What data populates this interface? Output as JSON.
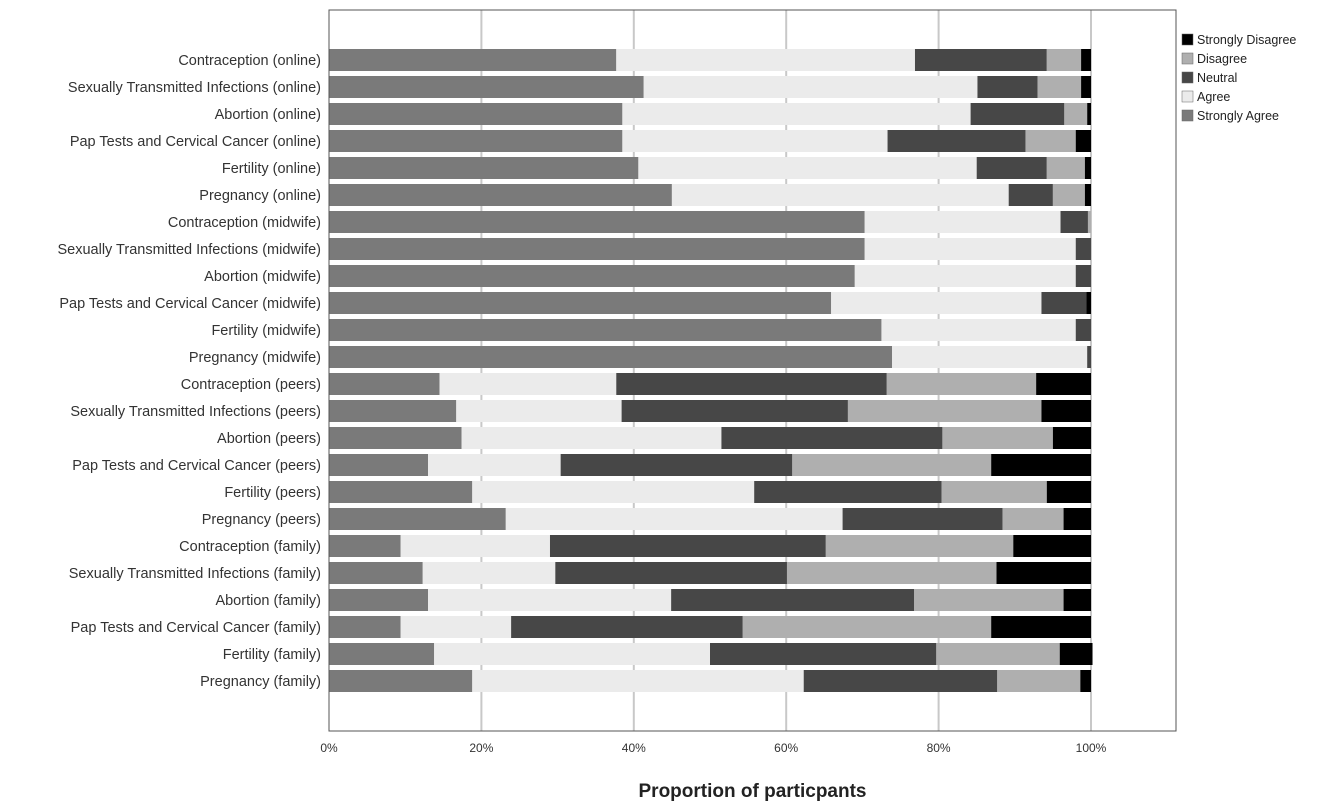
{
  "chart_data": {
    "type": "bar",
    "orientation": "horizontal",
    "stacked": true,
    "normalized": true,
    "xlabel": "Proportion of particpants",
    "xlim": [
      0,
      110
    ],
    "xticks": [
      "0%",
      "20%",
      "40%",
      "60%",
      "80%",
      "100%"
    ],
    "grid": "vertical",
    "legend_position": "top-right",
    "categories": [
      "Contraception (online)",
      "Sexually Transmitted Infections (online)",
      "Abortion  (online)",
      "Pap Tests and Cervical Cancer (online)",
      "Fertility (online)",
      "Pregnancy (online)",
      "Contraception (midwife)",
      "Sexually Transmitted Infections (midwife)",
      "Abortion (midwife)",
      "Pap Tests and Cervical Cancer (midwife)",
      "Fertility (midwife)",
      "Pregnancy (midwife)",
      "Contraception (peers)",
      "Sexually Transmitted Infections (peers)",
      "Abortion (peers)",
      "Pap Tests and Cervical Cancer (peers)",
      "Fertility (peers)",
      "Pregnancy (peers)",
      "Contraception (family)",
      "Sexually Transmitted Infections (family)",
      "Abortion (family)",
      "Pap Tests and Cervical Cancer (family)",
      "Fertility (family)",
      "Pregnancy (family)"
    ],
    "series": [
      {
        "name": "Strongly Agree",
        "color": "#7a7a7a",
        "values": [
          37.7,
          41.3,
          38.5,
          38.5,
          40.6,
          45.0,
          70.3,
          70.3,
          69.0,
          65.9,
          72.5,
          73.9,
          14.5,
          16.7,
          17.4,
          13.0,
          18.8,
          23.2,
          9.4,
          12.3,
          13.0,
          9.4,
          13.8,
          18.8
        ]
      },
      {
        "name": "Agree",
        "color": "#ebebeb",
        "values": [
          39.2,
          43.8,
          45.7,
          34.8,
          44.4,
          44.2,
          25.7,
          27.7,
          29.0,
          27.6,
          25.5,
          25.6,
          23.2,
          21.7,
          34.1,
          17.4,
          37.0,
          44.2,
          19.6,
          17.4,
          31.9,
          14.5,
          36.2,
          43.5
        ]
      },
      {
        "name": "Neutral",
        "color": "#474747",
        "values": [
          17.3,
          7.9,
          12.3,
          18.1,
          9.2,
          5.8,
          3.6,
          2.0,
          2.0,
          5.9,
          2.0,
          0.5,
          35.5,
          29.7,
          29.0,
          30.4,
          24.6,
          21.0,
          36.2,
          30.4,
          31.9,
          30.4,
          29.7,
          25.4
        ]
      },
      {
        "name": "Disagree",
        "color": "#afafaf",
        "values": [
          4.5,
          5.7,
          3.0,
          6.6,
          5.0,
          4.2,
          0.4,
          0.0,
          0.0,
          0.0,
          0.0,
          0.0,
          19.6,
          25.4,
          14.5,
          26.1,
          13.8,
          8.0,
          24.6,
          27.5,
          19.6,
          32.6,
          16.2,
          10.9
        ]
      },
      {
        "name": "Strongly Disagree",
        "color": "#000000",
        "values": [
          1.3,
          1.3,
          0.5,
          2.0,
          0.8,
          0.8,
          0.0,
          0.0,
          0.0,
          0.6,
          0.0,
          0.0,
          7.2,
          6.5,
          5.0,
          13.1,
          5.8,
          3.6,
          10.2,
          12.4,
          3.6,
          13.1,
          4.3,
          1.4
        ]
      }
    ]
  },
  "legend": {
    "order": [
      "Strongly Disagree",
      "Disagree",
      "Neutral",
      "Agree",
      "Strongly Agree"
    ]
  }
}
